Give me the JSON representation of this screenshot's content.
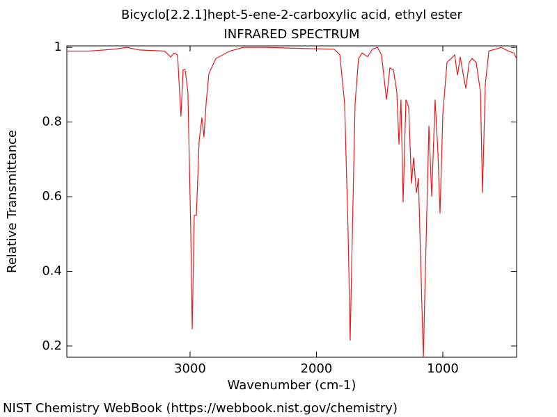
{
  "chart_data": {
    "type": "line",
    "title": "Bicyclo[2.2.1]hept-5-ene-2-carboxylic acid, ethyl ester",
    "subtitle": "INFRARED SPECTRUM",
    "x_label": "Wavenumber (cm-1)",
    "y_label": "Relative Transmittance",
    "source": "NIST Chemistry WebBook (https://webbook.nist.gov/chemistry)",
    "color": "#e8191c",
    "xlim": [
      3975,
      416
    ],
    "ylim": [
      0.17,
      1.004
    ],
    "xticks": [
      3000,
      2000,
      1000
    ],
    "yticks": [
      0.2,
      0.4,
      0.6,
      0.8,
      1
    ],
    "x": [
      3975,
      3800,
      3600,
      3500,
      3400,
      3200,
      3154,
      3127,
      3099,
      3072,
      3055,
      3039,
      3017,
      2994,
      2983,
      2967,
      2950,
      2928,
      2906,
      2890,
      2873,
      2851,
      2796,
      2686,
      2576,
      2400,
      2200,
      1860,
      1815,
      1777,
      1749,
      1733,
      1716,
      1694,
      1667,
      1639,
      1595,
      1557,
      1518,
      1485,
      1446,
      1419,
      1391,
      1364,
      1347,
      1331,
      1314,
      1292,
      1270,
      1248,
      1231,
      1209,
      1193,
      1165,
      1154,
      1138,
      1110,
      1088,
      1061,
      1039,
      1022,
      1000,
      967,
      934,
      906,
      884,
      862,
      840,
      818,
      791,
      769,
      736,
      702,
      686,
      664,
      636,
      537,
      482,
      438,
      416
    ],
    "values": [
      0.99,
      0.99,
      0.995,
      1.0,
      0.993,
      0.99,
      0.974,
      0.985,
      0.98,
      0.815,
      0.94,
      0.94,
      0.88,
      0.5,
      0.245,
      0.55,
      0.55,
      0.75,
      0.812,
      0.76,
      0.85,
      0.93,
      0.97,
      0.99,
      1.0,
      1.0,
      0.998,
      0.995,
      0.98,
      0.85,
      0.5,
      0.215,
      0.5,
      0.85,
      0.97,
      0.985,
      0.975,
      0.995,
      1.0,
      0.98,
      0.86,
      0.945,
      0.94,
      0.88,
      0.74,
      0.86,
      0.585,
      0.86,
      0.84,
      0.635,
      0.705,
      0.61,
      0.65,
      0.3,
      0.17,
      0.4,
      0.79,
      0.6,
      0.86,
      0.72,
      0.555,
      0.82,
      0.96,
      0.97,
      0.98,
      0.925,
      0.975,
      0.93,
      0.89,
      0.96,
      0.97,
      0.96,
      0.88,
      0.61,
      0.9,
      0.99,
      1.0,
      0.99,
      0.985,
      0.97
    ]
  }
}
